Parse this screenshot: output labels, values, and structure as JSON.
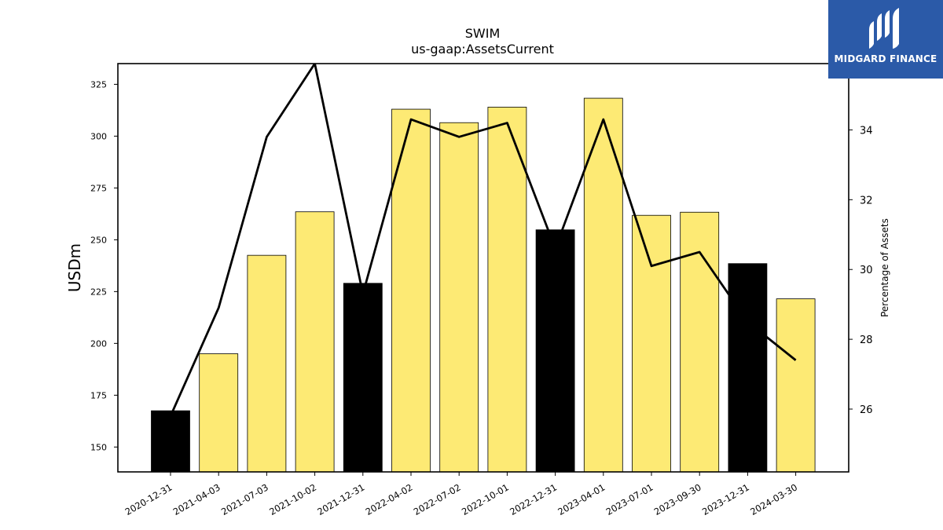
{
  "logo": {
    "text": "MIDGARD FINANCE",
    "bg": "#2b5aa8"
  },
  "chart_data": {
    "type": "bar",
    "title": "SWIM",
    "subtitle": "us-gaap:AssetsCurrent",
    "ylabel": "USDm",
    "ylabel_right": "Percentage of Assets",
    "categories": [
      "2020-12-31",
      "2021-04-03",
      "2021-07-03",
      "2021-10-02",
      "2021-12-31",
      "2022-04-02",
      "2022-07-02",
      "2022-10-01",
      "2022-12-31",
      "2023-04-01",
      "2023-07-01",
      "2023-09-30",
      "2023-12-31",
      "2024-03-30"
    ],
    "series": [
      {
        "values": [
          167.5,
          195,
          242.5,
          263.5,
          229,
          313,
          306.5,
          314,
          254.8,
          318.3,
          261.8,
          263.3,
          238.5,
          221.5
        ]
      },
      {
        "axis": "right",
        "values": [
          25.8,
          28.9,
          33.8,
          35.9,
          29.3,
          34.3,
          33.8,
          34.2,
          30.6,
          34.3,
          30.1,
          30.5,
          28.5,
          27.4
        ]
      }
    ],
    "highlight_categories": [
      "2020-12-31",
      "2021-12-31",
      "2022-12-31",
      "2023-12-31"
    ],
    "ylim": [
      138,
      335
    ],
    "ylim_right": [
      24.2,
      35.9
    ],
    "yticks": [
      150,
      175,
      200,
      225,
      250,
      275,
      300,
      325
    ],
    "yticks_right": [
      26,
      28,
      30,
      32,
      34
    ],
    "colors": {
      "bar": "#fdea74",
      "highlight_bar": "#000000",
      "line": "#000000"
    },
    "grid": false,
    "legend": "none"
  }
}
